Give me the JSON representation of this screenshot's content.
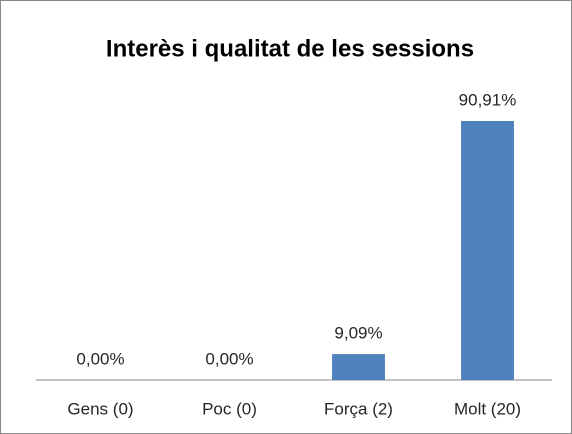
{
  "chart_data": {
    "type": "bar",
    "title": "Interès i qualitat de les sessions",
    "categories": [
      "Gens (0)",
      "Poc (0)",
      "Força (2)",
      "Molt (20)"
    ],
    "values": [
      0,
      0,
      9.09,
      90.91
    ],
    "value_labels": [
      "0,00%",
      "0,00%",
      "9,09%",
      "90,91%"
    ],
    "color": "#4f81bd"
  }
}
